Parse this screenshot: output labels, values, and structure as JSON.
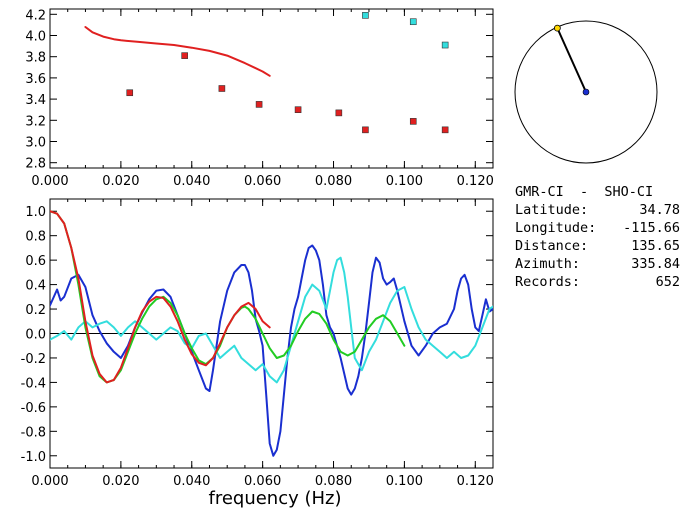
{
  "chart_data": [
    {
      "type": "scatter",
      "title": "",
      "xlabel": "",
      "ylabel": "",
      "xlim": [
        0.0,
        0.125
      ],
      "ylim": [
        2.75,
        4.25
      ],
      "x_ticks": [
        "0.000",
        "0.020",
        "0.040",
        "0.060",
        "0.080",
        "0.100",
        "0.120"
      ],
      "x_tick_values": [
        0.0,
        0.02,
        0.04,
        0.06,
        0.08,
        0.1,
        0.12
      ],
      "y_ticks": [
        "2.8",
        "3.0",
        "3.2",
        "3.4",
        "3.6",
        "3.8",
        "4.0",
        "4.2"
      ],
      "y_tick_values": [
        2.8,
        3.0,
        3.2,
        3.4,
        3.6,
        3.8,
        4.0,
        4.2
      ],
      "grid": false,
      "series": [
        {
          "kind": "line",
          "color": "#e02020",
          "x": [
            0.01,
            0.012,
            0.015,
            0.018,
            0.02,
            0.025,
            0.03,
            0.035,
            0.04,
            0.045,
            0.05,
            0.055,
            0.06,
            0.062
          ],
          "y": [
            4.08,
            4.03,
            3.99,
            3.965,
            3.955,
            3.94,
            3.925,
            3.91,
            3.885,
            3.855,
            3.81,
            3.74,
            3.66,
            3.62
          ]
        },
        {
          "kind": "markers",
          "color": "#e02020",
          "x": [
            0.0225,
            0.038,
            0.0485,
            0.059,
            0.07,
            0.0815,
            0.089,
            0.1025,
            0.1115
          ],
          "y": [
            3.46,
            3.81,
            3.5,
            3.35,
            3.3,
            3.27,
            3.11,
            3.19,
            3.11
          ]
        },
        {
          "kind": "markers",
          "color": "#33dddd",
          "x": [
            0.089,
            0.1025,
            0.1115
          ],
          "y": [
            4.19,
            4.13,
            3.91
          ]
        }
      ]
    },
    {
      "type": "line",
      "title": "",
      "xlabel": "frequency (Hz)",
      "ylabel": "",
      "xlim": [
        0.0,
        0.125
      ],
      "ylim": [
        -1.1,
        1.1
      ],
      "x_ticks": [
        "0.000",
        "0.020",
        "0.040",
        "0.060",
        "0.080",
        "0.100",
        "0.120"
      ],
      "x_tick_values": [
        0.0,
        0.02,
        0.04,
        0.06,
        0.08,
        0.1,
        0.12
      ],
      "y_ticks": [
        "-1.0",
        "-0.8",
        "-0.6",
        "-0.4",
        "-0.2",
        "0.0",
        "0.2",
        "0.4",
        "0.6",
        "0.8",
        "1.0"
      ],
      "y_tick_values": [
        -1.0,
        -0.8,
        -0.6,
        -0.4,
        -0.2,
        0.0,
        0.2,
        0.4,
        0.6,
        0.8,
        1.0
      ],
      "grid": false,
      "zero_line": true,
      "series": [
        {
          "color": "#1a2fd0",
          "x": [
            0.0,
            0.002,
            0.003,
            0.004,
            0.006,
            0.008,
            0.01,
            0.012,
            0.014,
            0.016,
            0.018,
            0.02,
            0.022,
            0.024,
            0.026,
            0.028,
            0.03,
            0.032,
            0.034,
            0.036,
            0.038,
            0.04,
            0.042,
            0.044,
            0.045,
            0.046,
            0.048,
            0.05,
            0.052,
            0.054,
            0.055,
            0.056,
            0.057,
            0.058,
            0.059,
            0.06,
            0.061,
            0.062,
            0.063,
            0.064,
            0.065,
            0.066,
            0.067,
            0.068,
            0.069,
            0.07,
            0.071,
            0.072,
            0.073,
            0.074,
            0.075,
            0.076,
            0.077,
            0.078,
            0.079,
            0.08,
            0.082,
            0.084,
            0.085,
            0.086,
            0.087,
            0.088,
            0.089,
            0.09,
            0.091,
            0.092,
            0.093,
            0.094,
            0.095,
            0.096,
            0.097,
            0.098,
            0.1,
            0.102,
            0.104,
            0.106,
            0.108,
            0.11,
            0.112,
            0.114,
            0.115,
            0.116,
            0.117,
            0.118,
            0.119,
            0.12,
            0.121,
            0.122,
            0.123,
            0.124,
            0.125
          ],
          "y": [
            0.23,
            0.36,
            0.27,
            0.3,
            0.45,
            0.48,
            0.38,
            0.15,
            0.02,
            -0.08,
            -0.15,
            -0.2,
            -0.1,
            0.05,
            0.17,
            0.28,
            0.35,
            0.36,
            0.3,
            0.15,
            0.0,
            -0.15,
            -0.3,
            -0.45,
            -0.47,
            -0.3,
            0.1,
            0.35,
            0.5,
            0.56,
            0.56,
            0.5,
            0.35,
            0.12,
            0.02,
            -0.1,
            -0.5,
            -0.9,
            -1.0,
            -0.95,
            -0.8,
            -0.5,
            -0.2,
            0.05,
            0.2,
            0.3,
            0.45,
            0.6,
            0.7,
            0.72,
            0.68,
            0.6,
            0.4,
            0.15,
            0.05,
            0.0,
            -0.2,
            -0.45,
            -0.5,
            -0.45,
            -0.35,
            -0.2,
            0.0,
            0.25,
            0.5,
            0.62,
            0.58,
            0.45,
            0.4,
            0.42,
            0.45,
            0.35,
            0.1,
            -0.1,
            -0.18,
            -0.1,
            0.0,
            0.05,
            0.08,
            0.2,
            0.35,
            0.45,
            0.48,
            0.4,
            0.2,
            0.05,
            0.02,
            0.15,
            0.28,
            0.18,
            0.2
          ]
        },
        {
          "color": "#33dddd",
          "x": [
            0.0,
            0.002,
            0.004,
            0.006,
            0.008,
            0.01,
            0.012,
            0.014,
            0.016,
            0.018,
            0.02,
            0.022,
            0.024,
            0.026,
            0.028,
            0.03,
            0.032,
            0.034,
            0.036,
            0.038,
            0.04,
            0.042,
            0.044,
            0.046,
            0.048,
            0.05,
            0.052,
            0.054,
            0.056,
            0.058,
            0.06,
            0.062,
            0.064,
            0.066,
            0.068,
            0.07,
            0.072,
            0.074,
            0.076,
            0.078,
            0.079,
            0.08,
            0.081,
            0.082,
            0.083,
            0.084,
            0.085,
            0.086,
            0.087,
            0.088,
            0.09,
            0.092,
            0.094,
            0.096,
            0.098,
            0.1,
            0.102,
            0.104,
            0.106,
            0.108,
            0.11,
            0.112,
            0.114,
            0.116,
            0.118,
            0.12,
            0.122,
            0.124,
            0.125
          ],
          "y": [
            -0.05,
            -0.02,
            0.02,
            -0.05,
            0.05,
            0.1,
            0.05,
            0.08,
            0.1,
            0.05,
            -0.02,
            0.05,
            0.1,
            0.05,
            0.0,
            -0.05,
            0.0,
            0.05,
            0.02,
            -0.08,
            -0.12,
            -0.02,
            0.0,
            -0.1,
            -0.2,
            -0.15,
            -0.1,
            -0.2,
            -0.25,
            -0.3,
            -0.25,
            -0.35,
            -0.4,
            -0.3,
            -0.1,
            0.1,
            0.3,
            0.4,
            0.35,
            0.2,
            0.35,
            0.5,
            0.6,
            0.62,
            0.5,
            0.3,
            0.05,
            -0.2,
            -0.25,
            -0.3,
            -0.15,
            -0.05,
            0.1,
            0.25,
            0.35,
            0.38,
            0.2,
            0.05,
            -0.05,
            -0.1,
            -0.15,
            -0.2,
            -0.15,
            -0.2,
            -0.18,
            -0.1,
            0.05,
            0.2,
            0.22
          ]
        },
        {
          "color": "#22cc22",
          "x": [
            0.0,
            0.002,
            0.004,
            0.006,
            0.008,
            0.01,
            0.012,
            0.014,
            0.016,
            0.018,
            0.02,
            0.022,
            0.024,
            0.026,
            0.028,
            0.03,
            0.032,
            0.034,
            0.036,
            0.038,
            0.04,
            0.042,
            0.044,
            0.046,
            0.048,
            0.05,
            0.052,
            0.054,
            0.055,
            0.056,
            0.058,
            0.06,
            0.062,
            0.064,
            0.066,
            0.068,
            0.07,
            0.072,
            0.074,
            0.076,
            0.078,
            0.08,
            0.082,
            0.084,
            0.086,
            0.088,
            0.09,
            0.092,
            0.094,
            0.096,
            0.098,
            0.1
          ],
          "y": [
            1.0,
            0.98,
            0.9,
            0.7,
            0.4,
            0.05,
            -0.2,
            -0.35,
            -0.4,
            -0.38,
            -0.3,
            -0.15,
            0.0,
            0.12,
            0.22,
            0.28,
            0.3,
            0.25,
            0.15,
            0.0,
            -0.12,
            -0.22,
            -0.25,
            -0.2,
            -0.1,
            0.05,
            0.15,
            0.21,
            0.22,
            0.2,
            0.12,
            0.0,
            -0.12,
            -0.2,
            -0.18,
            -0.1,
            0.02,
            0.12,
            0.18,
            0.16,
            0.08,
            -0.05,
            -0.15,
            -0.18,
            -0.15,
            -0.05,
            0.05,
            0.12,
            0.15,
            0.1,
            0.0,
            -0.1
          ]
        },
        {
          "color": "#e02020",
          "x": [
            0.0,
            0.002,
            0.004,
            0.006,
            0.008,
            0.01,
            0.012,
            0.014,
            0.016,
            0.018,
            0.02,
            0.022,
            0.024,
            0.026,
            0.028,
            0.03,
            0.032,
            0.034,
            0.036,
            0.038,
            0.04,
            0.042,
            0.044,
            0.046,
            0.048,
            0.05,
            0.052,
            0.054,
            0.056,
            0.058,
            0.06,
            0.062
          ],
          "y": [
            1.0,
            0.98,
            0.9,
            0.7,
            0.45,
            0.1,
            -0.18,
            -0.33,
            -0.4,
            -0.38,
            -0.28,
            -0.12,
            0.05,
            0.18,
            0.26,
            0.3,
            0.29,
            0.22,
            0.1,
            -0.05,
            -0.17,
            -0.24,
            -0.26,
            -0.2,
            -0.08,
            0.05,
            0.15,
            0.22,
            0.25,
            0.2,
            0.1,
            0.05
          ]
        }
      ]
    }
  ],
  "map_inset": {
    "station_color": "#1a2fd0",
    "event_color": "#ffd700",
    "azimuth_deg": 335.84
  },
  "info": {
    "title": "GMR-CI  -  SHO-CI",
    "rows": [
      {
        "label": "Latitude:",
        "value": "34.78"
      },
      {
        "label": "Longitude:",
        "value": "-115.66"
      },
      {
        "label": "Distance:",
        "value": "135.65"
      },
      {
        "label": "Azimuth:",
        "value": "335.84"
      },
      {
        "label": "Records:",
        "value": "652"
      }
    ]
  }
}
